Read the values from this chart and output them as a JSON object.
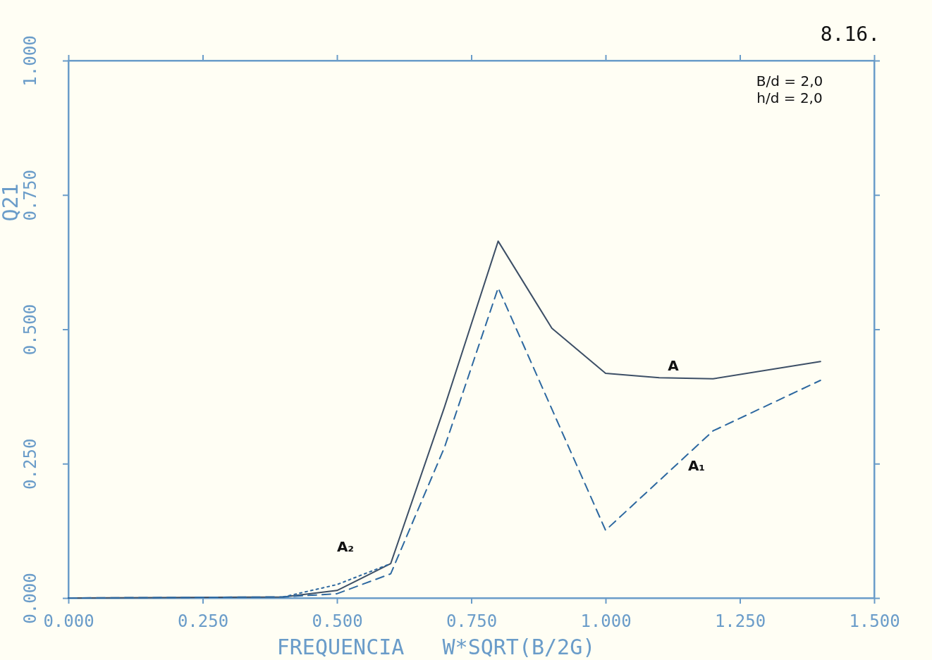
{
  "chart_data": {
    "type": "line",
    "title": "8.16.",
    "xlabel": "FREQUENCIA   W*SQRT(B/2G)",
    "ylabel": "Q21",
    "xlim": [
      0,
      1.5
    ],
    "ylim": [
      0,
      1
    ],
    "xticks": [
      {
        "value": 0,
        "label": "0.000"
      },
      {
        "value": 0.25,
        "label": "0.250"
      },
      {
        "value": 0.5,
        "label": "0.500"
      },
      {
        "value": 0.75,
        "label": "0.750"
      },
      {
        "value": 1,
        "label": "1.000"
      },
      {
        "value": 1.25,
        "label": "1.250"
      },
      {
        "value": 1.5,
        "label": "1.500"
      }
    ],
    "yticks": [
      {
        "value": 0,
        "label": "0.000"
      },
      {
        "value": 0.25,
        "label": "0.250"
      },
      {
        "value": 0.5,
        "label": "0.500"
      },
      {
        "value": 0.75,
        "label": "0.750"
      },
      {
        "value": 1,
        "label": "1.000"
      }
    ],
    "grid": false,
    "series": [
      {
        "name": "A",
        "color": "#3d4f66",
        "line_style": "solid",
        "x": [
          0,
          0.4,
          0.5,
          0.6,
          0.7,
          0.8,
          0.9,
          1.0,
          1.1,
          1.2,
          1.4
        ],
        "values": [
          0,
          0.002,
          0.014,
          0.064,
          0.355,
          0.664,
          0.502,
          0.418,
          0.41,
          0.408,
          0.44
        ]
      },
      {
        "name": "A₁",
        "color": "#2d68a0",
        "line_style": "dashed",
        "x": [
          0,
          0.4,
          0.5,
          0.6,
          0.7,
          0.8,
          1.0,
          1.2,
          1.4
        ],
        "values": [
          0,
          0.002,
          0.008,
          0.045,
          0.28,
          0.577,
          0.126,
          0.311,
          0.405
        ]
      },
      {
        "name": "A₂",
        "color": "#2d68a0",
        "line_style": "dotted",
        "x": [
          0.4,
          0.5,
          0.6
        ],
        "values": [
          0.002,
          0.025,
          0.064
        ]
      }
    ],
    "annotations": [
      "B/d = 2,0",
      "h/d = 2,0"
    ]
  }
}
